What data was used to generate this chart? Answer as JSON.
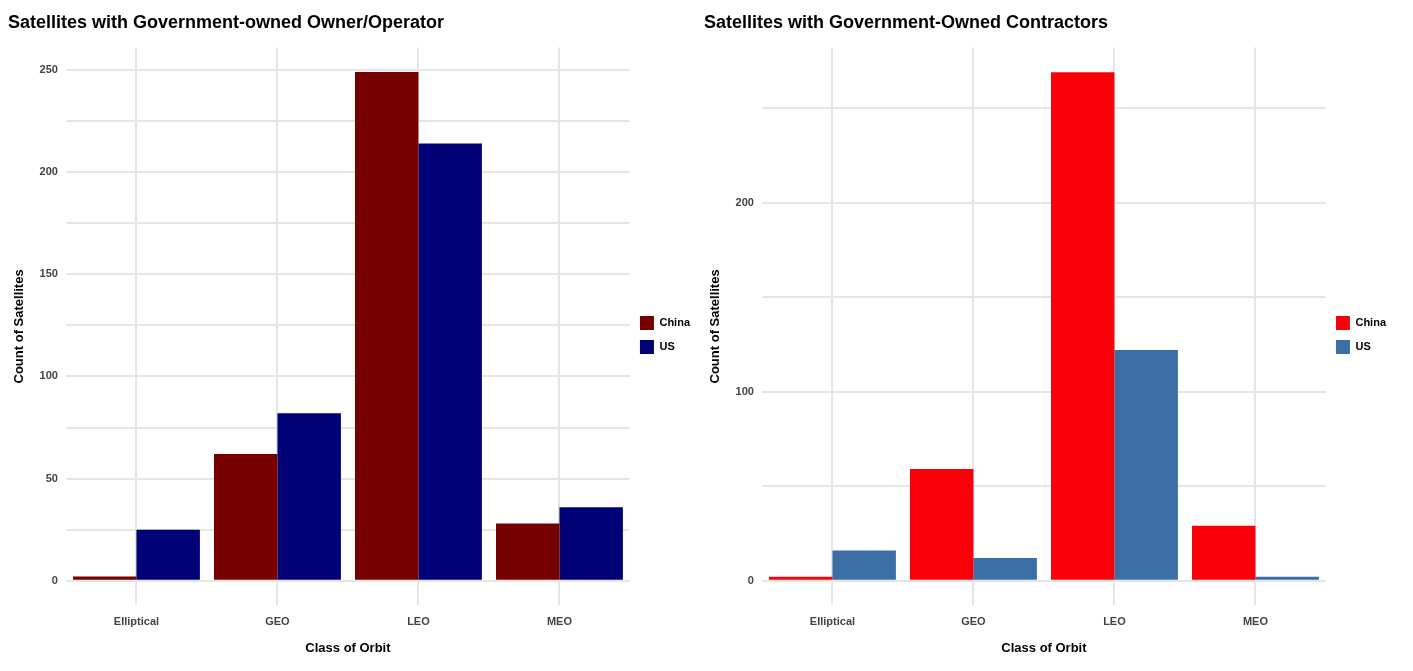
{
  "chart_data": [
    {
      "type": "bar",
      "title": "Satellites with Government-owned Owner/Operator",
      "xlabel": "Class of Orbit",
      "ylabel": "Count of Satellites",
      "categories": [
        "Elliptical",
        "GEO",
        "LEO",
        "MEO"
      ],
      "series": [
        {
          "name": "China",
          "color": "#770000",
          "values": [
            2,
            62,
            249,
            28
          ]
        },
        {
          "name": "US",
          "color": "#000077",
          "values": [
            25,
            82,
            214,
            36
          ]
        }
      ],
      "ylim": [
        -12,
        261
      ],
      "yticks": [
        0,
        {
          "value": 25,
          "label": null
        },
        50,
        {
          "value": 75,
          "label": null
        },
        100,
        {
          "value": 125,
          "label": null
        },
        150,
        {
          "value": 175,
          "label": null
        },
        200,
        {
          "value": 225,
          "label": null
        },
        250
      ],
      "grid": true,
      "legend": "right"
    },
    {
      "type": "bar",
      "title": "Satellites with Government-Owned Contractors",
      "xlabel": "Class of Orbit",
      "ylabel": "Count of Satellites",
      "categories": [
        "Elliptical",
        "GEO",
        "LEO",
        "MEO"
      ],
      "series": [
        {
          "name": "China",
          "color": "#fa0008",
          "values": [
            2,
            59,
            269,
            29
          ]
        },
        {
          "name": "US",
          "color": "#3a6ea5",
          "values": [
            16,
            12,
            122,
            2
          ]
        }
      ],
      "ylim": [
        -13,
        282
      ],
      "yticks": [
        0,
        {
          "value": 50,
          "label": null
        },
        100,
        {
          "value": 150,
          "label": null
        },
        200,
        {
          "value": 250,
          "label": null
        }
      ],
      "grid": true,
      "legend": "right"
    }
  ]
}
